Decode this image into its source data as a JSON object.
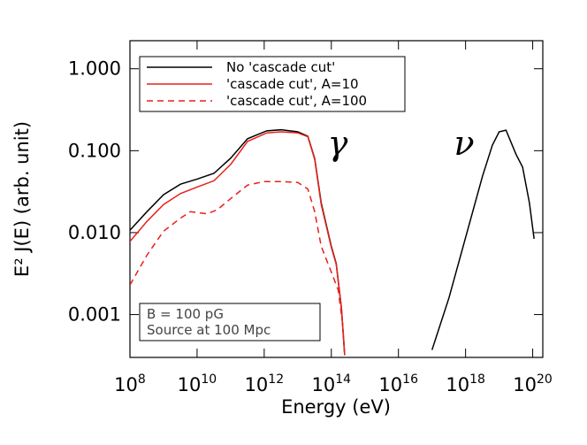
{
  "chart_data": {
    "type": "line",
    "x_label": "Energy (eV)",
    "y_label": "E² J(E) (arb. unit)",
    "log_x": true,
    "log_y": true,
    "xlim": [
      100000000.0,
      2e+20
    ],
    "ylim": [
      0.0003,
      2.2
    ],
    "xticks": [
      {
        "value": 100000000.0,
        "label": "10",
        "exponent": "8"
      },
      {
        "value": 10000000000.0,
        "label": "10",
        "exponent": "10"
      },
      {
        "value": 1000000000000.0,
        "label": "10",
        "exponent": "12"
      },
      {
        "value": 100000000000000.0,
        "label": "10",
        "exponent": "14"
      },
      {
        "value": 1e+16,
        "label": "10",
        "exponent": "16"
      },
      {
        "value": 1e+18,
        "label": "10",
        "exponent": "18"
      },
      {
        "value": 1e+20,
        "label": "10",
        "exponent": "20"
      }
    ],
    "yticks": [
      {
        "value": 0.001,
        "label": "0.001"
      },
      {
        "value": 0.01,
        "label": "0.010"
      },
      {
        "value": 0.1,
        "label": "0.100"
      },
      {
        "value": 1,
        "label": "1.000"
      }
    ],
    "legend": "top-left",
    "series": [
      {
        "name": "No 'cascade cut'",
        "color": "#000000",
        "dash": false,
        "x": [
          100000000.0,
          320000000.0,
          1000000000.0,
          3200000000.0,
          10000000000.0,
          32000000000.0,
          100000000000.0,
          320000000000.0,
          1200000000000.0,
          3200000000000.0,
          10000000000000.0,
          20000000000000.0,
          32000000000000.0,
          50000000000000.0,
          100000000000000.0,
          140000000000000.0,
          200000000000000.0,
          250000000000000.0,
          1e+16,
          1e+17,
          3.2e+17,
          1e+18,
          3.2e+18,
          6.3e+18,
          1e+19,
          1.6e+19,
          3.2e+19,
          5e+19,
          8e+19,
          1.1e+20
        ],
        "values": [
          0.0107,
          0.018,
          0.029,
          0.039,
          0.045,
          0.053,
          0.081,
          0.14,
          0.175,
          0.18,
          0.17,
          0.15,
          0.08,
          0.023,
          0.0068,
          0.0042,
          0.0012,
          0.00032,
          null,
          0.00037,
          0.0016,
          0.0087,
          0.049,
          0.117,
          0.17,
          0.178,
          0.09,
          0.063,
          0.023,
          0.0084
        ]
      },
      {
        "name": "'cascade cut', A=10",
        "color": "#e8201c",
        "dash": false,
        "x": [
          100000000.0,
          320000000.0,
          1000000000.0,
          3200000000.0,
          10000000000.0,
          32000000000.0,
          100000000000.0,
          320000000000.0,
          1200000000000.0,
          3200000000000.0,
          10000000000000.0,
          20000000000000.0,
          32000000000000.0,
          50000000000000.0,
          100000000000000.0,
          140000000000000.0,
          200000000000000.0,
          250000000000000.0
        ],
        "values": [
          0.0078,
          0.0137,
          0.022,
          0.03,
          0.036,
          0.043,
          0.068,
          0.13,
          0.165,
          0.17,
          0.165,
          0.148,
          0.078,
          0.022,
          0.0066,
          0.0041,
          0.0012,
          0.00032
        ]
      },
      {
        "name": "'cascade cut', A=100",
        "color": "#e8201c",
        "dash": true,
        "x": [
          100000000.0,
          320000000.0,
          1000000000.0,
          3200000000.0,
          6300000000.0,
          20000000000.0,
          40000000000.0,
          100000000000.0,
          320000000000.0,
          1000000000000.0,
          3200000000000.0,
          10000000000000.0,
          20000000000000.0,
          32000000000000.0,
          50000000000000.0,
          100000000000000.0,
          160000000000000.0,
          220000000000000.0,
          250000000000000.0
        ],
        "values": [
          0.0023,
          0.0053,
          0.0104,
          0.015,
          0.018,
          0.017,
          0.019,
          0.026,
          0.038,
          0.042,
          0.042,
          0.041,
          0.034,
          0.018,
          0.0068,
          0.0033,
          0.002,
          0.00074,
          0.00032
        ]
      }
    ],
    "annotations": [
      "γ",
      "ν"
    ],
    "info_box": [
      "B = 100 pG",
      "Source at 100 Mpc"
    ]
  }
}
